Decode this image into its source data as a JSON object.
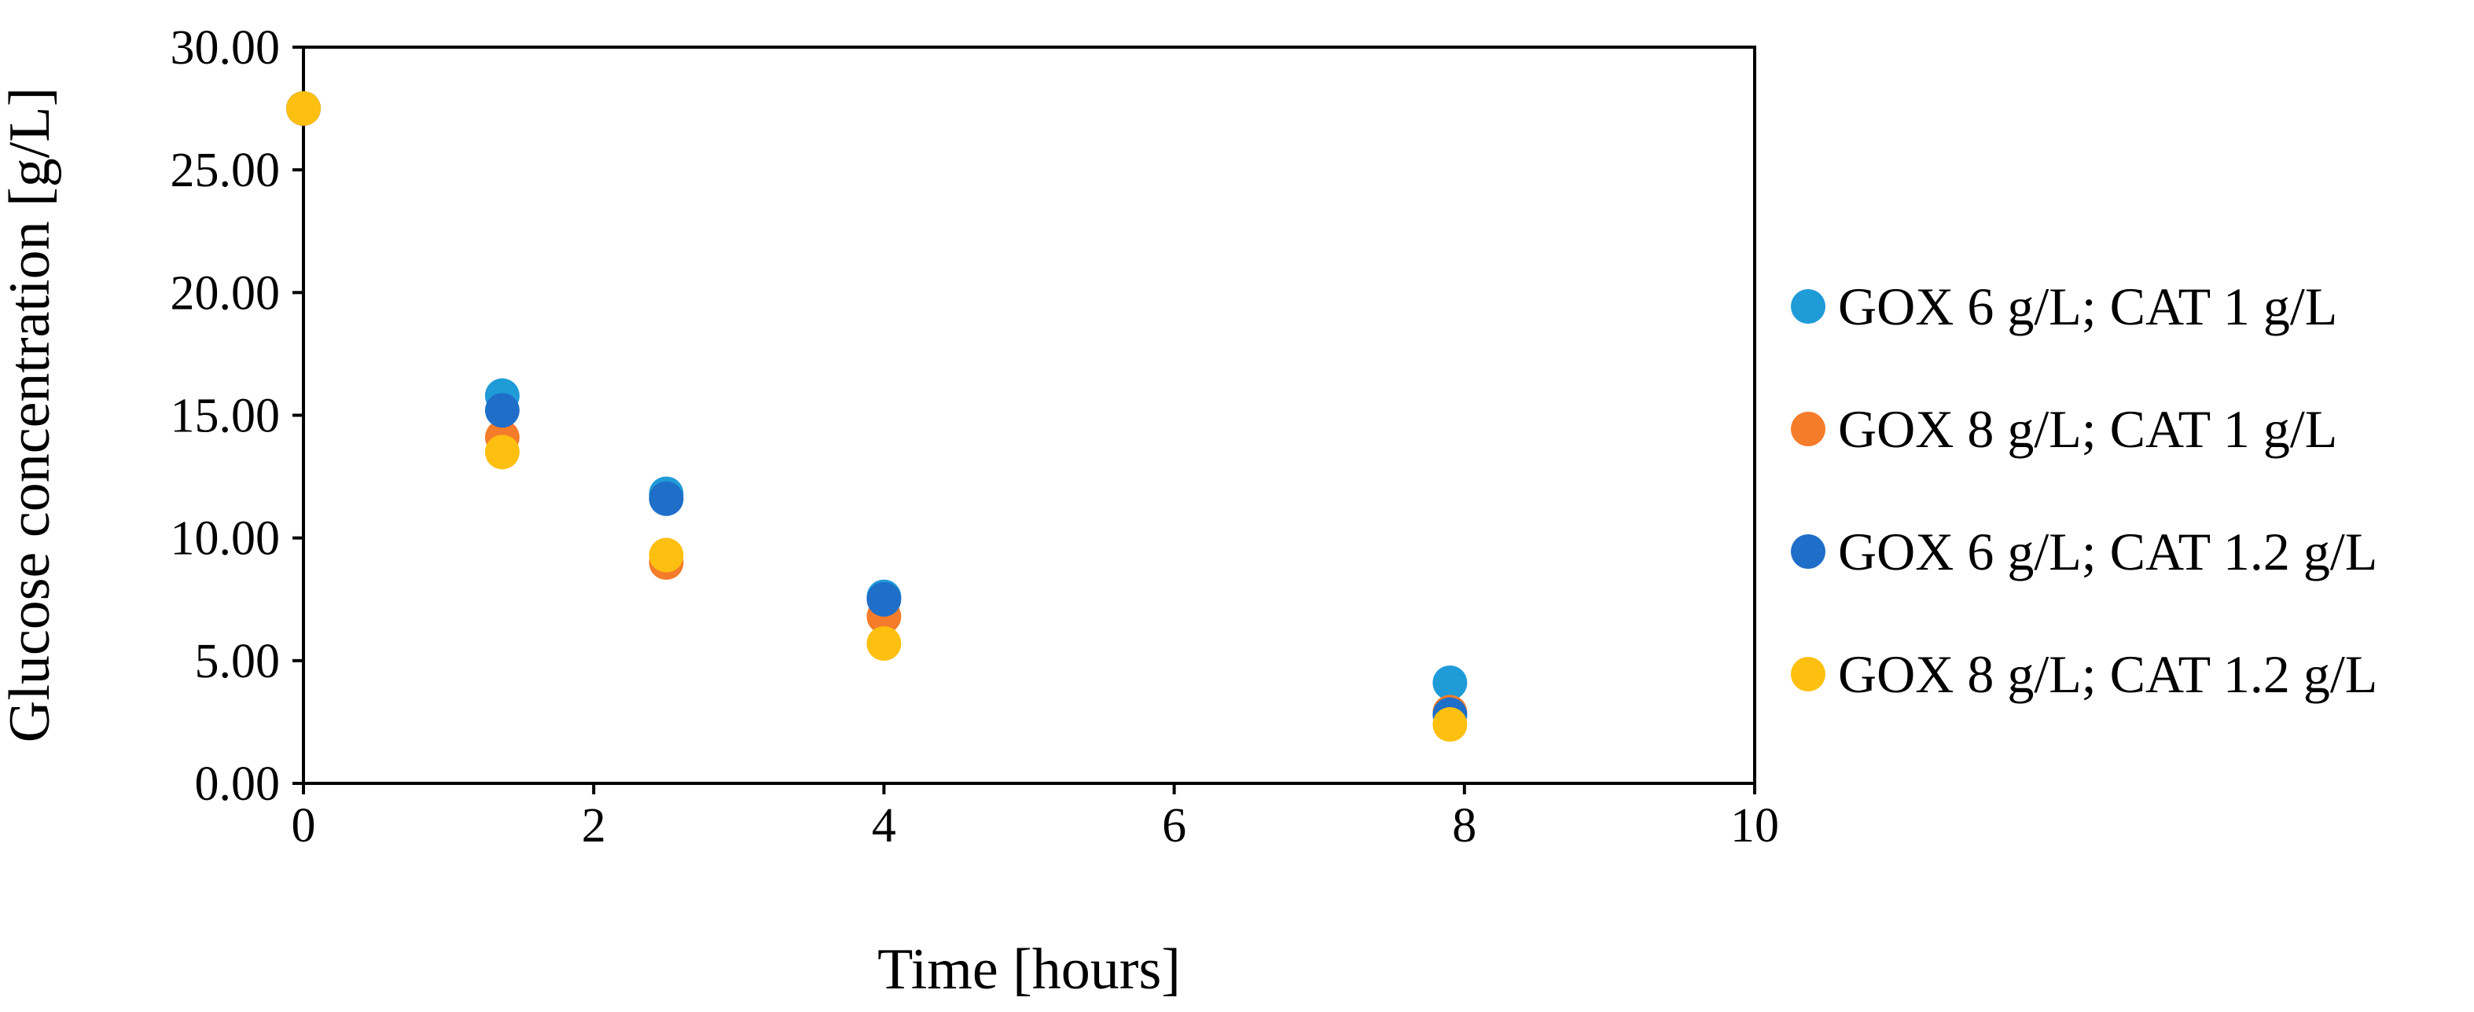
{
  "chart_data": {
    "type": "scatter",
    "title": "",
    "xlabel": "Time [hours]",
    "ylabel": "Glucose concentration [g/L]",
    "xlim": [
      0,
      10
    ],
    "ylim": [
      0,
      30
    ],
    "x_ticks": [
      "0",
      "2",
      "4",
      "6",
      "8",
      "10"
    ],
    "y_ticks": [
      "0.00",
      "5.00",
      "10.00",
      "15.00",
      "20.00",
      "25.00",
      "30.00"
    ],
    "grid": false,
    "legend_position": "right",
    "series": [
      {
        "name": "GOX 6 g/L; CAT 1 g/L",
        "color": "#1f9bd7",
        "x": [
          0,
          1.37,
          2.5,
          4,
          7.9
        ],
        "y": [
          27.5,
          15.8,
          11.8,
          7.6,
          4.1
        ]
      },
      {
        "name": "GOX 8 g/L; CAT 1 g/L",
        "color": "#f47c2a",
        "x": [
          0,
          1.37,
          2.5,
          4,
          7.9
        ],
        "y": [
          27.5,
          14.1,
          9.0,
          6.8,
          2.9
        ]
      },
      {
        "name": "GOX 6 g/L; CAT 1.2 g/L",
        "color": "#1f6ec8",
        "x": [
          0,
          1.37,
          2.5,
          4,
          7.9
        ],
        "y": [
          27.5,
          15.2,
          11.6,
          7.5,
          2.8
        ]
      },
      {
        "name": "GOX 8 g/L; CAT 1.2 g/L",
        "color": "#fdc010",
        "x": [
          0,
          1.37,
          2.5,
          4,
          7.9
        ],
        "y": [
          27.5,
          13.5,
          9.3,
          5.7,
          2.4
        ]
      }
    ]
  }
}
